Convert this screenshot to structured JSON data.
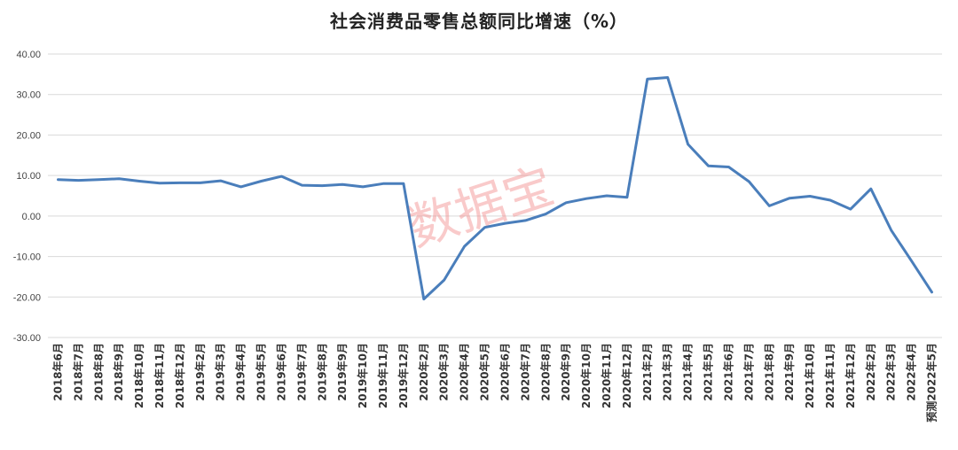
{
  "chart_data": {
    "type": "line",
    "title": "社会消费品零售总额同比增速（%）",
    "xlabel": "",
    "ylabel": "",
    "ylim": [
      -30,
      40
    ],
    "yticks": [
      "40.00",
      "30.00",
      "20.00",
      "10.00",
      "0.00",
      "-10.00",
      "-20.00",
      "-30.00"
    ],
    "grid": true,
    "line_color": "#4a7ebb",
    "watermark": "数据宝",
    "categories": [
      "2018年6月",
      "2018年7月",
      "2018年8月",
      "2018年9月",
      "2018年10月",
      "2018年11月",
      "2018年12月",
      "2019年2月",
      "2019年3月",
      "2019年4月",
      "2019年5月",
      "2019年6月",
      "2019年7月",
      "2019年8月",
      "2019年9月",
      "2019年10月",
      "2019年11月",
      "2019年12月",
      "2020年2月",
      "2020年3月",
      "2020年4月",
      "2020年5月",
      "2020年6月",
      "2020年7月",
      "2020年8月",
      "2020年9月",
      "2020年10月",
      "2020年11月",
      "2020年12月",
      "2021年2月",
      "2021年3月",
      "2021年4月",
      "2021年5月",
      "2021年6月",
      "2021年7月",
      "2021年8月",
      "2021年9月",
      "2021年10月",
      "2021年11月",
      "2021年12月",
      "2022年2月",
      "2022年3月",
      "2022年4月",
      "预测2022年5月"
    ],
    "values": [
      9.0,
      8.8,
      9.0,
      9.2,
      8.6,
      8.1,
      8.2,
      8.2,
      8.7,
      7.2,
      8.6,
      9.8,
      7.6,
      7.5,
      7.8,
      7.2,
      8.0,
      8.0,
      -20.5,
      -15.8,
      -7.5,
      -2.8,
      -1.8,
      -1.1,
      0.5,
      3.3,
      4.3,
      5.0,
      4.6,
      33.8,
      34.2,
      17.7,
      12.4,
      12.1,
      8.5,
      2.5,
      4.4,
      4.9,
      3.9,
      1.7,
      6.7,
      -3.5,
      -11.1,
      -18.8
    ]
  }
}
